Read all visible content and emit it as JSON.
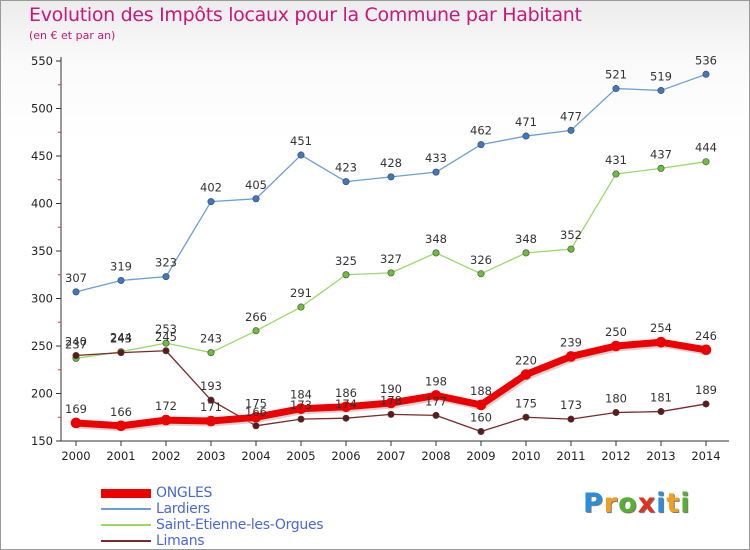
{
  "title": "Evolution des Impôts locaux pour la Commune par Habitant",
  "subtitle": "(en € et par an)",
  "logo": {
    "text": "Proxiti",
    "colors": [
      "#2a8ed8",
      "#f0a020",
      "#58b030",
      "#e03020",
      "#2a8ed8",
      "#f0a020",
      "#58b030"
    ]
  },
  "chart_data": {
    "type": "line",
    "title": "Evolution des Impôts locaux pour la Commune par Habitant",
    "subtitle": "(en € et par an)",
    "x": [
      "2000",
      "2001",
      "2002",
      "2003",
      "2004",
      "2005",
      "2006",
      "2007",
      "2008",
      "2009",
      "2010",
      "2011",
      "2012",
      "2013",
      "2014"
    ],
    "ylim": [
      150,
      550
    ],
    "yticks": [
      150,
      200,
      250,
      300,
      350,
      400,
      450,
      500,
      550
    ],
    "grid": false,
    "legend_position": "bottom-left",
    "series": [
      {
        "name": "Lardiers",
        "color": "#6a9fd4",
        "marker": "#3e78c0",
        "width": 1.3,
        "values": [
          307,
          319,
          323,
          402,
          405,
          451,
          423,
          428,
          433,
          462,
          471,
          477,
          521,
          519,
          536
        ]
      },
      {
        "name": "Saint-Etienne-les-Orgues",
        "color": "#9ad86a",
        "marker": "#6cbf3a",
        "width": 1.3,
        "values": [
          237,
          244,
          253,
          243,
          266,
          291,
          325,
          327,
          348,
          326,
          348,
          352,
          431,
          437,
          444
        ]
      },
      {
        "name": "Limans",
        "color": "#7a2a2a",
        "marker": "#5e1a1a",
        "width": 1.3,
        "values": [
          240,
          243,
          245,
          193,
          166,
          173,
          174,
          178,
          177,
          160,
          175,
          173,
          180,
          181,
          189
        ]
      },
      {
        "name": "ONGLES",
        "color": "#ee0000",
        "marker": "#ee0000",
        "width": 7,
        "values": [
          169,
          166,
          172,
          171,
          175,
          184,
          186,
          190,
          198,
          188,
          220,
          239,
          250,
          254,
          246
        ]
      }
    ],
    "legend_order": [
      "ONGLES",
      "Lardiers",
      "Saint-Etienne-les-Orgues",
      "Limans"
    ]
  }
}
